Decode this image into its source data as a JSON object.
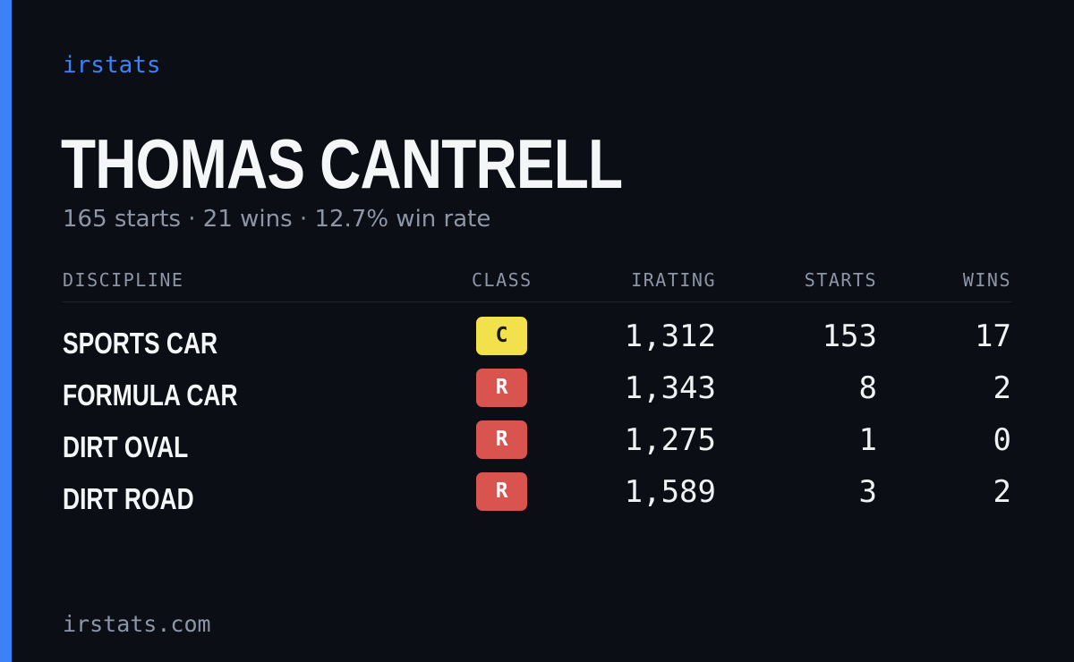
{
  "brand": "irstats",
  "driver": {
    "name": "THOMAS CANTRELL",
    "summary": "165 starts · 21 wins · 12.7% win rate"
  },
  "table": {
    "headers": {
      "discipline": "DISCIPLINE",
      "class": "CLASS",
      "irating": "IRATING",
      "starts": "STARTS",
      "wins": "WINS"
    },
    "rows": [
      {
        "discipline": "SPORTS CAR",
        "class": "C",
        "class_color": "#f2e14a",
        "class_text_color": "#1a1a1a",
        "irating": "1,312",
        "starts": "153",
        "wins": "17"
      },
      {
        "discipline": "FORMULA CAR",
        "class": "R",
        "class_color": "#d9534f",
        "class_text_color": "#ffffff",
        "irating": "1,343",
        "starts": "8",
        "wins": "2"
      },
      {
        "discipline": "DIRT OVAL",
        "class": "R",
        "class_color": "#d9534f",
        "class_text_color": "#ffffff",
        "irating": "1,275",
        "starts": "1",
        "wins": "0"
      },
      {
        "discipline": "DIRT ROAD",
        "class": "R",
        "class_color": "#d9534f",
        "class_text_color": "#ffffff",
        "irating": "1,589",
        "starts": "3",
        "wins": "2"
      }
    ]
  },
  "footer": "irstats.com",
  "colors": {
    "accent": "#3b82f6",
    "background": "#0b0e15"
  }
}
